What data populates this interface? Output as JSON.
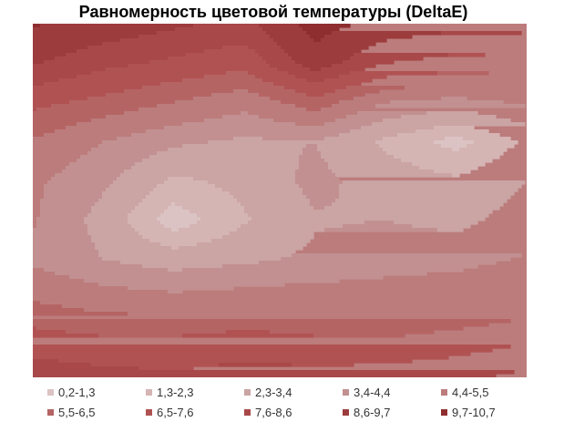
{
  "chart_data": {
    "type": "heatmap",
    "title": "Равномерность цветовой температуры (DeltaE)",
    "legend": {
      "placement": "bottom",
      "entries": [
        {
          "label": "0,2-1,3",
          "color": "#dcc3c3"
        },
        {
          "label": "1,3-2,3",
          "color": "#d5b4b4"
        },
        {
          "label": "2,3-3,4",
          "color": "#cba4a4"
        },
        {
          "label": "3,4-4,4",
          "color": "#c29090"
        },
        {
          "label": "4,4-5,5",
          "color": "#bc7c7c"
        },
        {
          "label": "5,5-6,5",
          "color": "#b56464"
        },
        {
          "label": "6,5-7,6",
          "color": "#b15252"
        },
        {
          "label": "7,6-8,6",
          "color": "#a84848"
        },
        {
          "label": "8,6-9,7",
          "color": "#9d3c3c"
        },
        {
          "label": "9,7-10,7",
          "color": "#8e2e2e"
        }
      ]
    },
    "grid": false,
    "axes_visible": false,
    "rows": 10,
    "cols": 8,
    "values": [
      [
        9.8,
        9.3,
        8.8,
        8.3,
        10.2,
        9.3,
        8.9,
        9.0
      ],
      [
        8.7,
        7.9,
        7.4,
        6.9,
        9.2,
        7.6,
        7.2,
        7.3
      ],
      [
        6.8,
        6.2,
        5.5,
        4.8,
        6.1,
        4.4,
        4.0,
        4.6
      ],
      [
        5.4,
        4.4,
        3.6,
        3.2,
        3.4,
        2.1,
        0.9,
        2.5
      ],
      [
        4.6,
        3.6,
        2.1,
        2.6,
        3.7,
        2.9,
        2.5,
        3.4
      ],
      [
        4.5,
        3.0,
        0.7,
        2.2,
        3.3,
        3.4,
        3.1,
        3.9
      ],
      [
        4.2,
        3.4,
        2.9,
        3.2,
        3.6,
        4.0,
        4.1,
        4.5
      ],
      [
        5.4,
        4.9,
        4.7,
        4.9,
        5.0,
        4.9,
        5.1,
        5.6
      ],
      [
        6.9,
        6.6,
        6.6,
        6.9,
        6.6,
        6.5,
        6.9,
        7.4
      ],
      [
        8.3,
        8.0,
        7.8,
        8.1,
        8.0,
        8.2,
        8.4,
        8.9
      ]
    ]
  }
}
